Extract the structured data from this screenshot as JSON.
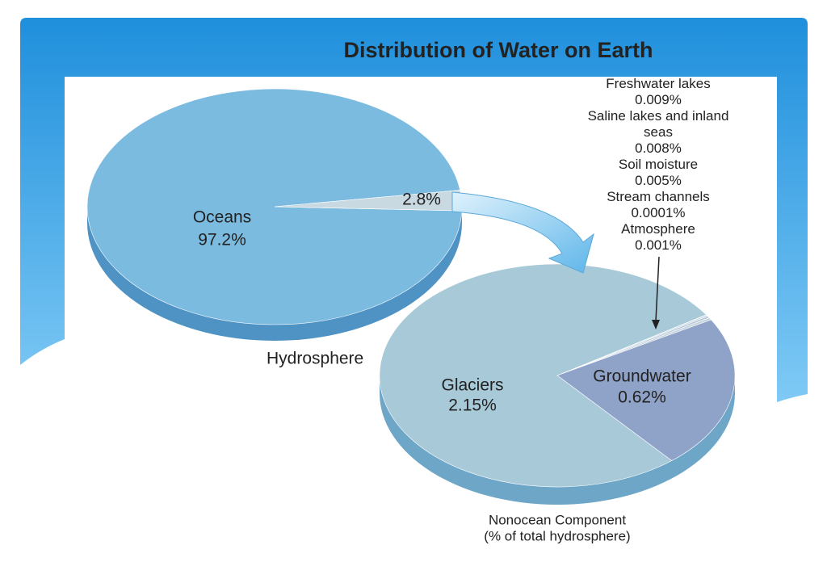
{
  "title": "Distribution of Water on Earth",
  "chart_data": [
    {
      "type": "pie",
      "title": "Hydrosphere",
      "categories": [
        "Oceans",
        null
      ],
      "values": [
        97.2,
        2.8
      ],
      "value_labels": [
        "97.2%",
        "2.8%"
      ],
      "colors": [
        "#7cbbe0",
        "#c9d9e2"
      ]
    },
    {
      "type": "pie",
      "title": "Nonocean Component",
      "subtitle": "(% of total hydrosphere)",
      "categories": [
        "Glaciers",
        "Groundwater",
        "Freshwater lakes",
        "Saline lakes and inland seas",
        "Soil moisture",
        "Stream channels",
        "Atmosphere"
      ],
      "values": [
        2.15,
        0.62,
        0.009,
        0.008,
        0.005,
        0.0001,
        0.001
      ],
      "value_labels": [
        "2.15%",
        "0.62%",
        "0.009%",
        "0.008%",
        "0.005%",
        "0.0001%",
        "0.001%"
      ],
      "colors": [
        "#a8cad8",
        "#8fa2c8",
        "#c3d3de",
        "#b8cad8",
        "#c3d3de",
        "#b8cad8",
        "#c3d3de"
      ]
    }
  ]
}
